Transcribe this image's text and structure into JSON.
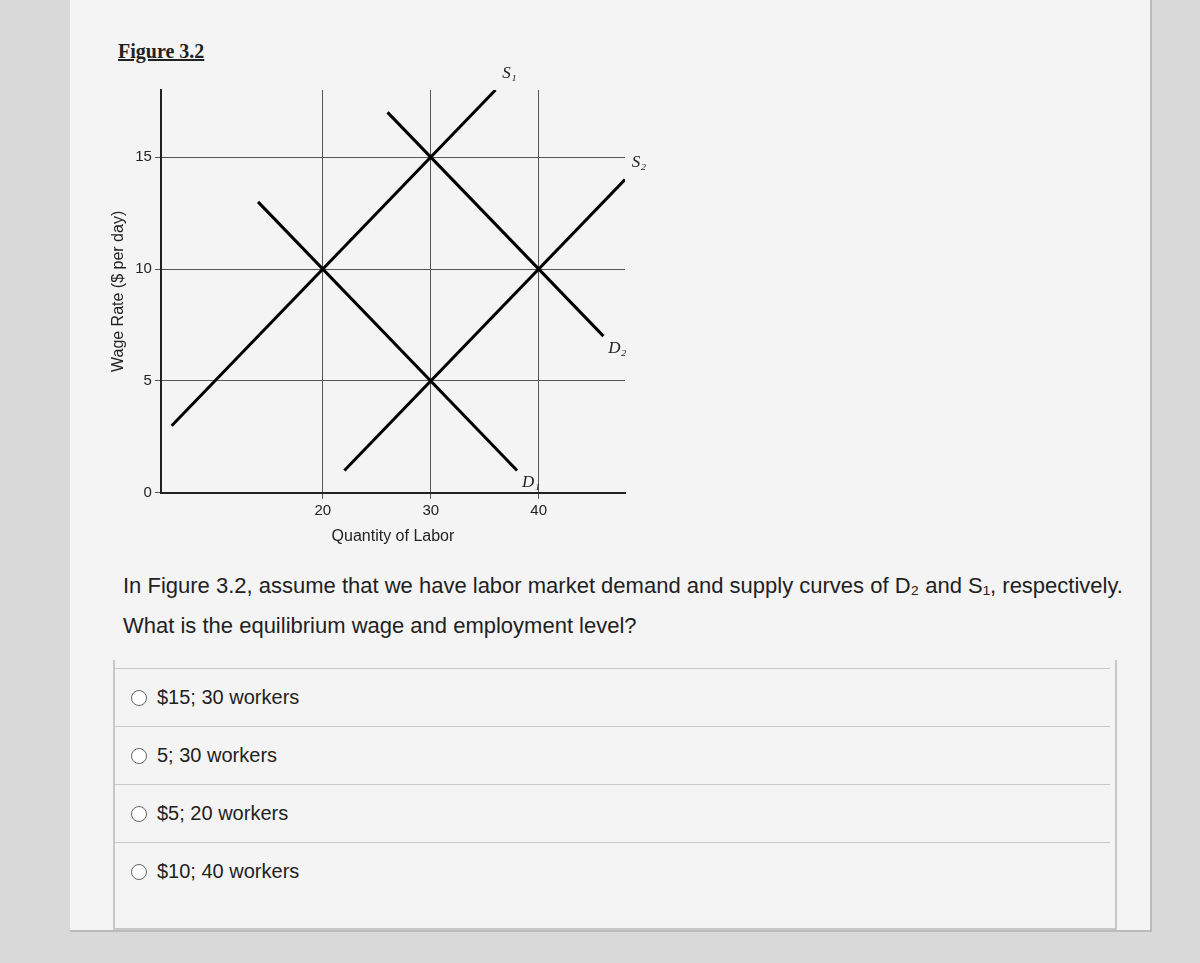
{
  "chart_data": {
    "type": "line",
    "title": "Figure 3.2",
    "x_label": "Quantity of Labor",
    "y_label": "Wage Rate ($ per day)",
    "series": [
      {
        "name": "S₁",
        "color": "#000000",
        "x": [
          6,
          36
        ],
        "values": [
          3,
          18
        ]
      },
      {
        "name": "S₂",
        "color": "#000000",
        "x": [
          22,
          48
        ],
        "values": [
          1,
          14
        ]
      },
      {
        "name": "D₁",
        "color": "#000000",
        "x": [
          14,
          38
        ],
        "values": [
          13,
          1
        ]
      },
      {
        "name": "D₂",
        "color": "#000000",
        "x": [
          26,
          46
        ],
        "values": [
          17,
          7
        ]
      }
    ],
    "xlim": [
      5,
      48
    ],
    "xticks": [
      20,
      30,
      40
    ],
    "ylim": [
      0,
      18
    ],
    "yticks": [
      0,
      5,
      10,
      15
    ],
    "grid": true,
    "marker": "none",
    "line_style": "solid"
  },
  "question": "In Figure 3.2, assume that we have labor market demand and supply curves of D₂ and S₁, respectively. What is the equilibrium wage and employment level?",
  "options": [
    "$15; 30 workers",
    "5; 30 workers",
    "$5; 20 workers",
    "$10; 40 workers"
  ]
}
